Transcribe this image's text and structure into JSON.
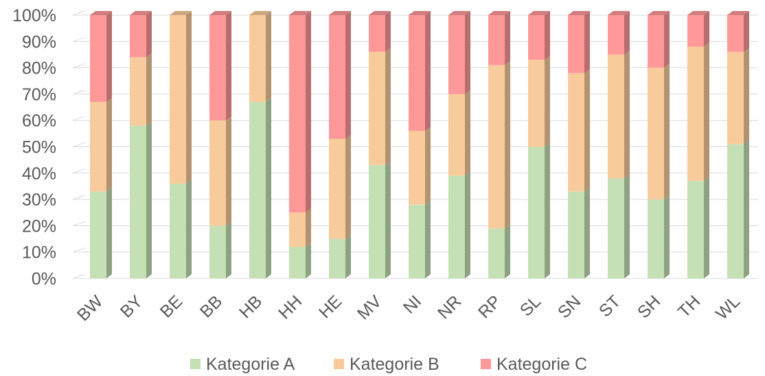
{
  "chart_data": {
    "type": "bar",
    "stacked": "percent",
    "title": "",
    "xlabel": "",
    "ylabel": "",
    "ylim": [
      0,
      100
    ],
    "y_ticks": [
      "0%",
      "10%",
      "20%",
      "30%",
      "40%",
      "50%",
      "60%",
      "70%",
      "80%",
      "90%",
      "100%"
    ],
    "grid": true,
    "legend_position": "bottom",
    "categories": [
      "BW",
      "BY",
      "BE",
      "BB",
      "HB",
      "HH",
      "HE",
      "MV",
      "NI",
      "NR",
      "RP",
      "SL",
      "SN",
      "ST",
      "SH",
      "TH",
      "WL"
    ],
    "series": [
      {
        "name": "Kategorie A",
        "color": "#c5e0b4",
        "values": [
          33,
          58,
          36,
          20,
          67,
          12,
          15,
          43,
          28,
          39,
          19,
          50,
          33,
          38,
          30,
          37,
          51
        ]
      },
      {
        "name": "Kategorie B",
        "color": "#f8cb9c",
        "values": [
          34,
          26,
          64,
          40,
          33,
          13,
          38,
          43,
          28,
          31,
          62,
          33,
          45,
          47,
          50,
          51,
          35
        ]
      },
      {
        "name": "Kategorie C",
        "color": "#ff9999",
        "values": [
          33,
          16,
          0,
          40,
          0,
          75,
          47,
          14,
          44,
          30,
          19,
          17,
          22,
          15,
          20,
          12,
          14
        ]
      }
    ]
  }
}
